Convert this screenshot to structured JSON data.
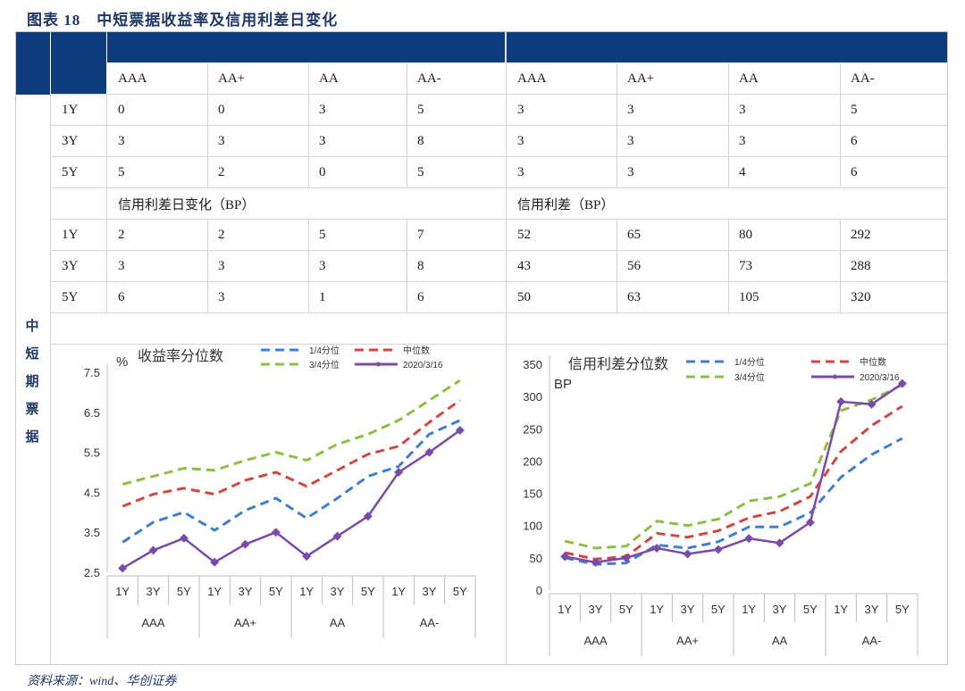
{
  "figure_title": "图表 18　中短票据收益率及信用利差日变化",
  "side_label": [
    "中",
    "短",
    "期",
    "票",
    "据"
  ],
  "source": "资料来源：wind、华创证券",
  "colors": {
    "header_blue": "#0d3c7c",
    "q1": "#3f7fd0",
    "median": "#d0473f",
    "q3": "#8dbf45",
    "current": "#7a4aa8"
  },
  "table": {
    "grades": [
      "AAA",
      "AA+",
      "AA",
      "AA-",
      "AAA",
      "AA+",
      "AA",
      "AA-"
    ],
    "section1_rows": [
      {
        "tenor": "1Y",
        "values": [
          "0",
          "0",
          "3",
          "5",
          "3",
          "3",
          "3",
          "5"
        ]
      },
      {
        "tenor": "3Y",
        "values": [
          "3",
          "3",
          "3",
          "8",
          "3",
          "3",
          "3",
          "6"
        ]
      },
      {
        "tenor": "5Y",
        "values": [
          "5",
          "2",
          "0",
          "5",
          "3",
          "3",
          "4",
          "6"
        ]
      }
    ],
    "section2_left_title": "信用利差日变化（BP）",
    "section2_right_title": "信用利差（BP）",
    "section2_rows": [
      {
        "tenor": "1Y",
        "values": [
          "2",
          "2",
          "5",
          "7",
          "52",
          "65",
          "80",
          "292"
        ]
      },
      {
        "tenor": "3Y",
        "values": [
          "3",
          "3",
          "3",
          "8",
          "43",
          "56",
          "73",
          "288"
        ]
      },
      {
        "tenor": "5Y",
        "values": [
          "6",
          "3",
          "1",
          "6",
          "50",
          "63",
          "105",
          "320"
        ]
      }
    ]
  },
  "chart_data": [
    {
      "type": "line",
      "title": "收益率分位数",
      "ylabel": "%",
      "ylim": [
        2.5,
        7.5
      ],
      "yticks": [
        "7.5",
        "6.5",
        "5.5",
        "4.5",
        "3.5",
        "2.5"
      ],
      "categories": [
        "1Y",
        "3Y",
        "5Y",
        "1Y",
        "3Y",
        "5Y",
        "1Y",
        "3Y",
        "5Y",
        "1Y",
        "3Y",
        "5Y"
      ],
      "groups": [
        "AAA",
        "AA+",
        "AA",
        "AA-"
      ],
      "series": [
        {
          "name": "1/4分位",
          "style": "dashed",
          "color": "#3f7fd0",
          "values": [
            3.25,
            3.75,
            4.0,
            3.55,
            4.05,
            4.35,
            3.85,
            4.35,
            4.9,
            5.15,
            5.95,
            6.3
          ]
        },
        {
          "name": "中位数",
          "style": "dashed",
          "color": "#d0473f",
          "values": [
            4.15,
            4.45,
            4.6,
            4.45,
            4.8,
            5.0,
            4.65,
            5.05,
            5.45,
            5.65,
            6.25,
            6.8
          ]
        },
        {
          "name": "3/4分位",
          "style": "dashed",
          "color": "#8dbf45",
          "values": [
            4.7,
            4.9,
            5.1,
            5.05,
            5.3,
            5.5,
            5.3,
            5.7,
            5.95,
            6.3,
            6.8,
            7.3
          ]
        },
        {
          "name": "2020/3/16",
          "style": "solid",
          "color": "#7a4aa8",
          "values": [
            2.6,
            3.05,
            3.35,
            2.75,
            3.2,
            3.5,
            2.9,
            3.4,
            3.9,
            5.0,
            5.5,
            6.05
          ]
        }
      ]
    },
    {
      "type": "line",
      "title": "信用利差分位数",
      "ylabel": "BP",
      "ylim": [
        0,
        350
      ],
      "yticks": [
        "350",
        "300",
        "250",
        "200",
        "150",
        "100",
        "50",
        "0"
      ],
      "categories": [
        "1Y",
        "3Y",
        "5Y",
        "1Y",
        "3Y",
        "5Y",
        "1Y",
        "3Y",
        "5Y",
        "1Y",
        "3Y",
        "5Y"
      ],
      "groups": [
        "AAA",
        "AA+",
        "AA",
        "AA-"
      ],
      "series": [
        {
          "name": "1/4分位",
          "style": "dashed",
          "color": "#3f7fd0",
          "values": [
            50,
            40,
            42,
            70,
            65,
            75,
            98,
            98,
            120,
            175,
            210,
            235
          ]
        },
        {
          "name": "中位数",
          "style": "dashed",
          "color": "#d0473f",
          "values": [
            58,
            48,
            52,
            88,
            82,
            92,
            112,
            122,
            145,
            215,
            255,
            285
          ]
        },
        {
          "name": "3/4分位",
          "style": "dashed",
          "color": "#8dbf45",
          "values": [
            76,
            65,
            68,
            107,
            100,
            110,
            138,
            145,
            165,
            278,
            295,
            318
          ]
        },
        {
          "name": "2020/3/16",
          "style": "solid",
          "color": "#7a4aa8",
          "values": [
            52,
            43,
            50,
            65,
            56,
            63,
            80,
            73,
            105,
            292,
            288,
            320
          ]
        }
      ]
    }
  ]
}
